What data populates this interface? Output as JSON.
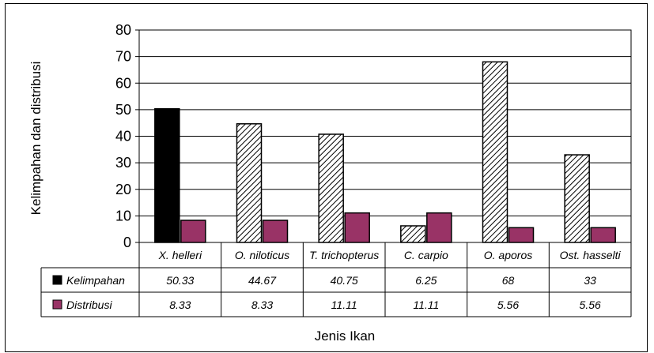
{
  "chart_data": {
    "type": "bar",
    "categories": [
      "X. helleri",
      "O. niloticus",
      "T. trichopterus",
      "C. carpio",
      "O. aporos",
      "Ost. hasselti"
    ],
    "series": [
      {
        "name": "Kelimpahan",
        "values": [
          50.33,
          44.67,
          40.75,
          6.25,
          68,
          33
        ],
        "value_labels": [
          "50.33",
          "44.67",
          "40.75",
          "6.25",
          "68",
          "33"
        ]
      },
      {
        "name": "Distribusi",
        "values": [
          8.33,
          8.33,
          11.11,
          11.11,
          5.56,
          5.56
        ],
        "value_labels": [
          "8.33",
          "8.33",
          "11.11",
          "11.11",
          "5.56",
          "5.56"
        ]
      }
    ],
    "colors": {
      "kelimpahan_first": "#000000",
      "kelimpahan_hatch": "#000000",
      "distribusi": "#993366"
    },
    "xlabel": "Jenis Ikan",
    "ylabel": "Kelimpahan dan distribusi",
    "ylim": [
      0,
      80
    ],
    "yticks": [
      "0",
      "10",
      "20",
      "30",
      "40",
      "50",
      "60",
      "70",
      "80"
    ],
    "grid": true,
    "legend": "data-table"
  }
}
